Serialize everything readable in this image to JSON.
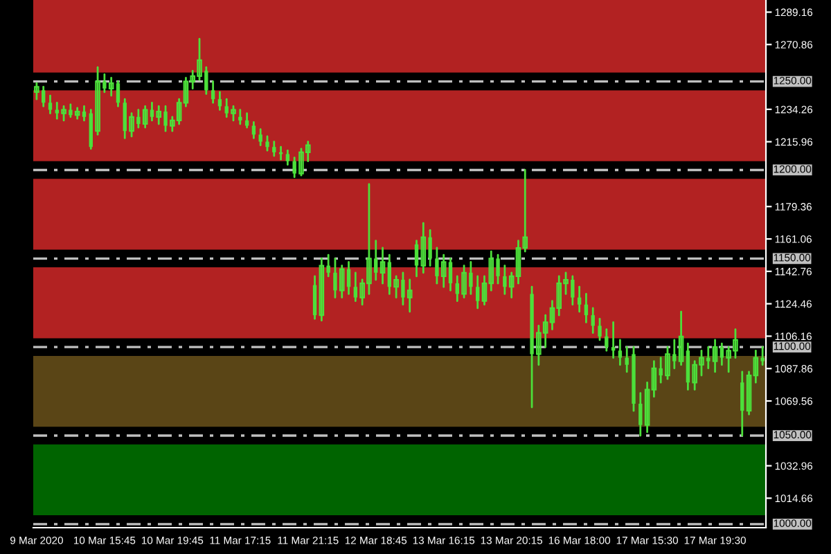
{
  "chart_data": {
    "type": "candlestick",
    "categories": [
      "9 Mar 2020",
      null,
      null,
      null,
      null,
      null,
      null,
      null,
      null,
      null,
      "10 Mar 15:45",
      null,
      null,
      null,
      null,
      null,
      null,
      null,
      null,
      null,
      "10 Mar 19:45",
      null,
      null,
      null,
      null,
      null,
      null,
      null,
      null,
      null,
      "11 Mar 17:15",
      null,
      null,
      null,
      null,
      null,
      null,
      null,
      null,
      null,
      "11 Mar 21:15",
      null,
      null,
      null,
      null,
      null,
      null,
      null,
      null,
      null,
      "12 Mar 18:45",
      null,
      null,
      null,
      null,
      null,
      null,
      null,
      null,
      null,
      "13 Mar 16:15",
      null,
      null,
      null,
      null,
      null,
      null,
      null,
      null,
      null,
      "13 Mar 20:15",
      null,
      null,
      null,
      null,
      null,
      null,
      null,
      null,
      null,
      "16 Mar 18:00",
      null,
      null,
      null,
      null,
      null,
      null,
      null,
      null,
      null,
      "17 Mar 15:30",
      null,
      null,
      null,
      null,
      null,
      null,
      null,
      null,
      null,
      "17 Mar 19:30",
      null,
      null,
      null,
      null,
      null,
      null,
      null
    ],
    "ohlc": [
      [
        1244,
        1249,
        1240,
        1247
      ],
      [
        1245,
        1247,
        1236,
        1238
      ],
      [
        1238,
        1242,
        1232,
        1234
      ],
      [
        1234,
        1238,
        1229,
        1232
      ],
      [
        1232,
        1236,
        1228,
        1234
      ],
      [
        1234,
        1237,
        1230,
        1231
      ],
      [
        1231,
        1235,
        1229,
        1233
      ],
      [
        1233,
        1236,
        1228,
        1230
      ],
      [
        1232,
        1234,
        1212,
        1213
      ],
      [
        1222,
        1258,
        1220,
        1250
      ],
      [
        1250,
        1254,
        1244,
        1246
      ],
      [
        1246,
        1252,
        1242,
        1249
      ],
      [
        1249,
        1250,
        1236,
        1238
      ],
      [
        1238,
        1240,
        1218,
        1222
      ],
      [
        1222,
        1232,
        1219,
        1230
      ],
      [
        1230,
        1234,
        1224,
        1226
      ],
      [
        1226,
        1236,
        1224,
        1234
      ],
      [
        1234,
        1238,
        1228,
        1230
      ],
      [
        1230,
        1236,
        1226,
        1233
      ],
      [
        1233,
        1236,
        1222,
        1225
      ],
      [
        1225,
        1230,
        1222,
        1228
      ],
      [
        1228,
        1240,
        1226,
        1238
      ],
      [
        1238,
        1252,
        1236,
        1250
      ],
      [
        1250,
        1256,
        1246,
        1253
      ],
      [
        1253,
        1274,
        1251,
        1262
      ],
      [
        1256,
        1258,
        1243,
        1245
      ],
      [
        1245,
        1250,
        1238,
        1240
      ],
      [
        1240,
        1244,
        1234,
        1236
      ],
      [
        1236,
        1240,
        1230,
        1232
      ],
      [
        1232,
        1236,
        1228,
        1234
      ],
      [
        1230,
        1234,
        1226,
        1228
      ],
      [
        1228,
        1232,
        1224,
        1225
      ],
      [
        1225,
        1227,
        1218,
        1220
      ],
      [
        1220,
        1223,
        1214,
        1216
      ],
      [
        1216,
        1219,
        1211,
        1213
      ],
      [
        1213,
        1216,
        1208,
        1210
      ],
      [
        1210,
        1213,
        1206,
        1209
      ],
      [
        1209,
        1211,
        1203,
        1205
      ],
      [
        1205,
        1207,
        1196,
        1198
      ],
      [
        1198,
        1212,
        1197,
        1210
      ],
      [
        1210,
        1216,
        1205,
        1214
      ],
      [
        1135,
        1140,
        1116,
        1118
      ],
      [
        1118,
        1150,
        1115,
        1146
      ],
      [
        1146,
        1152,
        1140,
        1142
      ],
      [
        1142,
        1150,
        1128,
        1132
      ],
      [
        1132,
        1146,
        1128,
        1144
      ],
      [
        1144,
        1148,
        1130,
        1134
      ],
      [
        1134,
        1142,
        1126,
        1128
      ],
      [
        1128,
        1138,
        1124,
        1136
      ],
      [
        1136,
        1192,
        1130,
        1150
      ],
      [
        1150,
        1160,
        1138,
        1142
      ],
      [
        1142,
        1156,
        1136,
        1148
      ],
      [
        1148,
        1152,
        1130,
        1134
      ],
      [
        1134,
        1140,
        1128,
        1138
      ],
      [
        1138,
        1142,
        1124,
        1128
      ],
      [
        1128,
        1138,
        1120,
        1132
      ],
      [
        1158,
        1160,
        1140,
        1146
      ],
      [
        1146,
        1170,
        1142,
        1162
      ],
      [
        1162,
        1166,
        1146,
        1150
      ],
      [
        1150,
        1156,
        1136,
        1140
      ],
      [
        1140,
        1152,
        1134,
        1148
      ],
      [
        1148,
        1150,
        1132,
        1136
      ],
      [
        1136,
        1140,
        1126,
        1130
      ],
      [
        1130,
        1146,
        1128,
        1142
      ],
      [
        1142,
        1148,
        1130,
        1134
      ],
      [
        1134,
        1140,
        1122,
        1126
      ],
      [
        1126,
        1140,
        1124,
        1136
      ],
      [
        1136,
        1154,
        1132,
        1150
      ],
      [
        1150,
        1152,
        1136,
        1140
      ],
      [
        1140,
        1146,
        1130,
        1134
      ],
      [
        1134,
        1142,
        1128,
        1140
      ],
      [
        1140,
        1160,
        1136,
        1156
      ],
      [
        1156,
        1200,
        1154,
        1162
      ],
      [
        1130,
        1134,
        1066,
        1096
      ],
      [
        1096,
        1112,
        1090,
        1108
      ],
      [
        1108,
        1118,
        1100,
        1114
      ],
      [
        1114,
        1126,
        1110,
        1122
      ],
      [
        1122,
        1140,
        1118,
        1136
      ],
      [
        1136,
        1142,
        1130,
        1138
      ],
      [
        1138,
        1140,
        1124,
        1128
      ],
      [
        1128,
        1134,
        1120,
        1124
      ],
      [
        1124,
        1130,
        1114,
        1118
      ],
      [
        1118,
        1122,
        1108,
        1112
      ],
      [
        1112,
        1116,
        1104,
        1106
      ],
      [
        1106,
        1110,
        1098,
        1100
      ],
      [
        1100,
        1114,
        1094,
        1098
      ],
      [
        1098,
        1104,
        1090,
        1094
      ],
      [
        1094,
        1100,
        1086,
        1090
      ],
      [
        1096,
        1100,
        1064,
        1068
      ],
      [
        1068,
        1074,
        1050,
        1056
      ],
      [
        1056,
        1080,
        1052,
        1076
      ],
      [
        1076,
        1092,
        1072,
        1088
      ],
      [
        1088,
        1094,
        1080,
        1084
      ],
      [
        1084,
        1100,
        1082,
        1096
      ],
      [
        1096,
        1104,
        1088,
        1092
      ],
      [
        1092,
        1120,
        1090,
        1106
      ],
      [
        1098,
        1102,
        1076,
        1080
      ],
      [
        1080,
        1092,
        1076,
        1090
      ],
      [
        1090,
        1098,
        1084,
        1094
      ],
      [
        1094,
        1100,
        1088,
        1092
      ],
      [
        1092,
        1104,
        1086,
        1100
      ],
      [
        1100,
        1102,
        1090,
        1094
      ],
      [
        1094,
        1100,
        1086,
        1098
      ],
      [
        1098,
        1110,
        1094,
        1104
      ],
      [
        1080,
        1086,
        1050,
        1064
      ],
      [
        1064,
        1086,
        1062,
        1084
      ],
      [
        1084,
        1098,
        1080,
        1094
      ],
      [
        1094,
        1100,
        1090,
        1092
      ]
    ],
    "color": "#4ce03a",
    "ylim": [
      998,
      1296
    ],
    "yticks": [
      1289.16,
      1270.86,
      1234.26,
      1215.96,
      1179.36,
      1161.06,
      1142.76,
      1124.46,
      1106.16,
      1087.86,
      1069.56,
      1032.96,
      1014.66
    ],
    "bands": [
      {
        "axis": "y",
        "from": 1255,
        "to": 1296,
        "color": "#b22222"
      },
      {
        "axis": "y",
        "from": 1205,
        "to": 1245,
        "color": "#b22222"
      },
      {
        "axis": "y",
        "from": 1155,
        "to": 1195,
        "color": "#b22222"
      },
      {
        "axis": "y",
        "from": 1105,
        "to": 1145,
        "color": "#b22222"
      },
      {
        "axis": "y",
        "from": 1055,
        "to": 1095,
        "color": "#5a4516"
      },
      {
        "axis": "y",
        "from": 1005,
        "to": 1045,
        "color": "#006400"
      }
    ],
    "ref_lines": [
      {
        "axis": "y",
        "value": 1250,
        "label": "1250.00",
        "color": "#c0c0c0",
        "line_style": "dashed"
      },
      {
        "axis": "y",
        "value": 1200,
        "label": "1200.00",
        "color": "#c0c0c0",
        "line_style": "dashed"
      },
      {
        "axis": "y",
        "value": 1150,
        "label": "1150.00",
        "color": "#c0c0c0",
        "line_style": "dashed"
      },
      {
        "axis": "y",
        "value": 1100,
        "label": "1100.00",
        "color": "#c0c0c0",
        "line_style": "dashed"
      },
      {
        "axis": "y",
        "value": 1050,
        "label": "1050.00",
        "color": "#c0c0c0",
        "line_style": "dashed"
      },
      {
        "axis": "y",
        "value": 1000,
        "label": "1000.00",
        "color": "#c0c0c0",
        "line_style": "dashed"
      }
    ],
    "grid": false,
    "legend": false
  }
}
